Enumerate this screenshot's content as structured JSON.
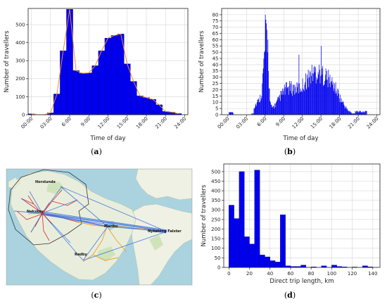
{
  "colors": {
    "bar": "#0000ee",
    "bar_edge": "#00008b",
    "trend": "#f08c28",
    "grid": "#d6d6d6",
    "route_blue": "#3a6fe0",
    "route_red": "#d8282a",
    "route_orange": "#f0a020",
    "sea": "#aad3df",
    "land": "#eef1e3"
  },
  "captions": {
    "a": "a",
    "b": "b",
    "c": "c",
    "d": "d"
  },
  "chart_data": [
    {
      "id": "a",
      "type": "bar",
      "xlabel": "Time of day",
      "ylabel": "Number of travellers",
      "xlim": [
        -0.5,
        24.5
      ],
      "ylim": [
        0,
        590
      ],
      "xticks": [
        "00:00",
        "03:00",
        "6:00",
        "9:00",
        "12:00",
        "15:00",
        "18:00",
        "21:00",
        "24:00"
      ],
      "xtick_values": [
        0,
        3,
        6,
        9,
        12,
        15,
        18,
        21,
        24
      ],
      "yticks": [
        0,
        100,
        200,
        300,
        400,
        500
      ],
      "bin_width": 1,
      "x": [
        0,
        1,
        2,
        3,
        4,
        5,
        6,
        7,
        8,
        9,
        10,
        11,
        12,
        13,
        14,
        15,
        16,
        17,
        18,
        19,
        20,
        21,
        22,
        23
      ],
      "values": [
        5,
        0,
        0,
        10,
        115,
        355,
        585,
        245,
        230,
        232,
        272,
        355,
        425,
        440,
        448,
        282,
        185,
        105,
        95,
        85,
        55,
        18,
        14,
        6
      ],
      "trend_line": true,
      "grid": true
    },
    {
      "id": "b",
      "type": "bar",
      "xlabel": "Time of day",
      "ylabel": "Number of travellers",
      "xlim": [
        -1,
        24.5
      ],
      "ylim": [
        0,
        85
      ],
      "xticks": [
        "00:00",
        "03:00",
        "6:00",
        "9:00",
        "12:00",
        "15:00",
        "18:00",
        "21:00",
        "24:00"
      ],
      "xtick_values": [
        0,
        3,
        6,
        9,
        12,
        15,
        18,
        21,
        24
      ],
      "yticks": [
        0,
        5,
        10,
        15,
        20,
        25,
        30,
        35,
        40,
        45,
        50,
        55,
        60,
        65,
        70,
        75,
        80
      ],
      "bin_width": 0.0833,
      "grid": true
    },
    {
      "id": "d",
      "type": "bar",
      "xlabel": "Direct trip length, km",
      "ylabel": "Number of travellers",
      "xlim": [
        -5,
        147
      ],
      "ylim": [
        0,
        540
      ],
      "xticks": [
        "0",
        "20",
        "40",
        "60",
        "80",
        "100",
        "120",
        "140"
      ],
      "xtick_values": [
        0,
        20,
        40,
        60,
        80,
        100,
        120,
        140
      ],
      "yticks": [
        0,
        50,
        100,
        150,
        200,
        250,
        300,
        350,
        400,
        450,
        500
      ],
      "bin_width": 5,
      "x": [
        2.5,
        7.5,
        12.5,
        17.5,
        22.5,
        27.5,
        32.5,
        37.5,
        42.5,
        47.5,
        52.5,
        57.5,
        62.5,
        67.5,
        72.5,
        77.5,
        82.5,
        87.5,
        92.5,
        97.5,
        102.5,
        107.5,
        112.5,
        117.5,
        122.5,
        127.5,
        132.5,
        137.5,
        142.5
      ],
      "values": [
        325,
        255,
        500,
        160,
        122,
        508,
        65,
        55,
        35,
        28,
        275,
        8,
        5,
        5,
        12,
        0,
        3,
        0,
        8,
        0,
        12,
        5,
        3,
        0,
        2,
        0,
        8,
        3,
        0
      ],
      "grid": true
    }
  ],
  "map": {
    "towns": [
      "Horslunde",
      "Nakskov",
      "Maribo",
      "Nykøbing Falster",
      "Rødby"
    ]
  }
}
